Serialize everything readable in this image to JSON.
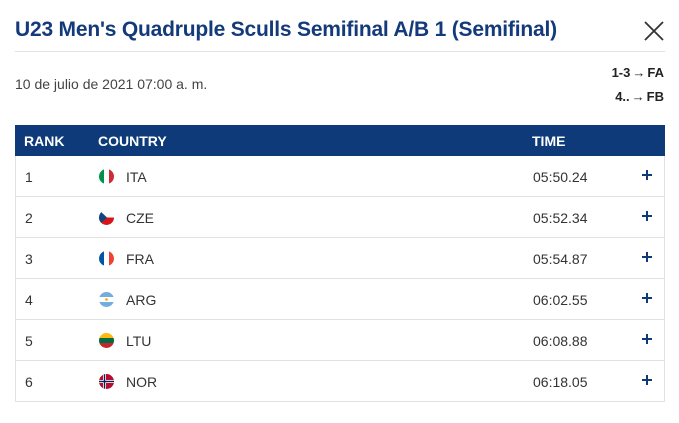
{
  "header": {
    "title": "U23 Men's Quadruple Sculls Semifinal A/B 1 (Semifinal)",
    "close_icon": "close-icon"
  },
  "meta": {
    "date": "10 de julio de 2021 07:00 a. m.",
    "progression": [
      {
        "places": "1-3",
        "arrow": "→",
        "final": "FA"
      },
      {
        "places": "4..",
        "arrow": "→",
        "final": "FB"
      }
    ]
  },
  "table": {
    "headers": {
      "rank": "RANK",
      "country": "COUNTRY",
      "time": "TIME"
    },
    "rows": [
      {
        "rank": "1",
        "country": "ITA",
        "time": "05:50.24",
        "flag": "italy-flag-icon"
      },
      {
        "rank": "2",
        "country": "CZE",
        "time": "05:52.34",
        "flag": "czech-flag-icon"
      },
      {
        "rank": "3",
        "country": "FRA",
        "time": "05:54.87",
        "flag": "france-flag-icon"
      },
      {
        "rank": "4",
        "country": "ARG",
        "time": "06:02.55",
        "flag": "argentina-flag-icon"
      },
      {
        "rank": "5",
        "country": "LTU",
        "time": "06:08.88",
        "flag": "lithuania-flag-icon"
      },
      {
        "rank": "6",
        "country": "NOR",
        "time": "06:18.05",
        "flag": "norway-flag-icon"
      }
    ]
  },
  "colors": {
    "brand": "#0e3a7a",
    "title": "#143a7b"
  }
}
